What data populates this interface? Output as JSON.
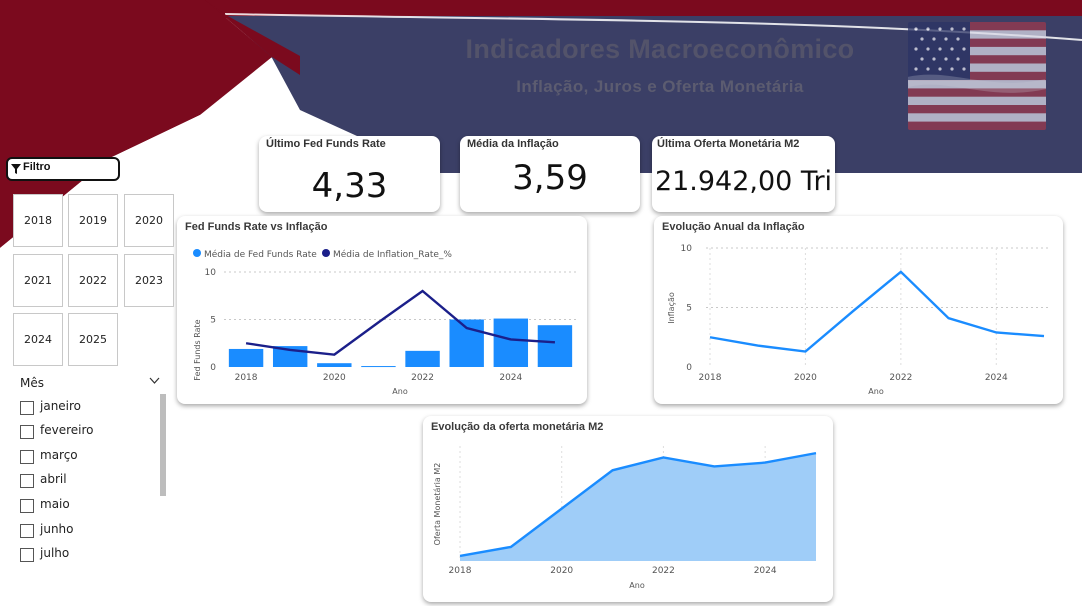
{
  "header": {
    "title": "Indicadores Macroeconômico",
    "subtitle": "Inflação, Juros e Oferta Monetária",
    "flag_icon": "us-flag-icon"
  },
  "colors": {
    "maroon": "#7b0a1e",
    "navy": "#3b3f66",
    "bar_blue": "#1a8cff",
    "line_navy": "#1b1f8a",
    "area_fill": "#9fcdf8"
  },
  "kpis": [
    {
      "label": "Último Fed Funds Rate",
      "value": "4,33"
    },
    {
      "label": "Média da Inflação",
      "value": "3,59"
    },
    {
      "label": "Última Oferta Monetária M2",
      "value": "21.942,00 Tri"
    }
  ],
  "filter": {
    "label": "Filtro",
    "years": [
      "2018",
      "2019",
      "2020",
      "2021",
      "2022",
      "2023",
      "2024",
      "2025"
    ],
    "month_title": "Mês",
    "months": [
      "janeiro",
      "fevereiro",
      "março",
      "abril",
      "maio",
      "junho",
      "julho"
    ]
  },
  "chart_data": [
    {
      "type": "bar",
      "title": "Fed Funds Rate vs Inflação",
      "xlabel": "Ano",
      "ylabel": "Fed Funds Rate",
      "x": [
        2018,
        2019,
        2020,
        2021,
        2022,
        2023,
        2024,
        2025
      ],
      "x_ticks": [
        "2018",
        "2020",
        "2022",
        "2024"
      ],
      "y_ticks": [
        "0",
        "5",
        "10"
      ],
      "ylim": [
        0,
        10
      ],
      "legend_position": "top-left",
      "series": [
        {
          "name": "Média de Fed Funds Rate",
          "type": "bar",
          "values": [
            1.9,
            2.2,
            0.4,
            0.1,
            1.7,
            5.0,
            5.1,
            4.4
          ]
        },
        {
          "name": "Média de Inflation_Rate_%",
          "type": "line",
          "values": [
            2.5,
            1.8,
            1.3,
            4.7,
            8.0,
            4.1,
            2.9,
            2.6
          ]
        }
      ]
    },
    {
      "type": "line",
      "title": "Evolução Anual da Inflação",
      "xlabel": "Ano",
      "ylabel": "Inflação",
      "x": [
        2018,
        2019,
        2020,
        2021,
        2022,
        2023,
        2024,
        2025
      ],
      "x_ticks": [
        "2018",
        "2020",
        "2022",
        "2024"
      ],
      "y_ticks": [
        "0",
        "5",
        "10"
      ],
      "ylim": [
        0,
        10
      ],
      "values": [
        2.5,
        1.8,
        1.3,
        4.7,
        8.0,
        4.1,
        2.9,
        2.6
      ]
    },
    {
      "type": "area",
      "title": "Evolução da oferta monetária M2",
      "xlabel": "Ano",
      "ylabel": "Oferta Monetária M2",
      "x": [
        2018,
        2019,
        2020,
        2021,
        2022,
        2023,
        2024,
        2025
      ],
      "x_ticks": [
        "2018",
        "2020",
        "2022",
        "2024"
      ],
      "ylim": [
        13500,
        22500
      ],
      "values": [
        13900,
        14600,
        17600,
        20600,
        21600,
        20900,
        21200,
        21942
      ]
    }
  ]
}
